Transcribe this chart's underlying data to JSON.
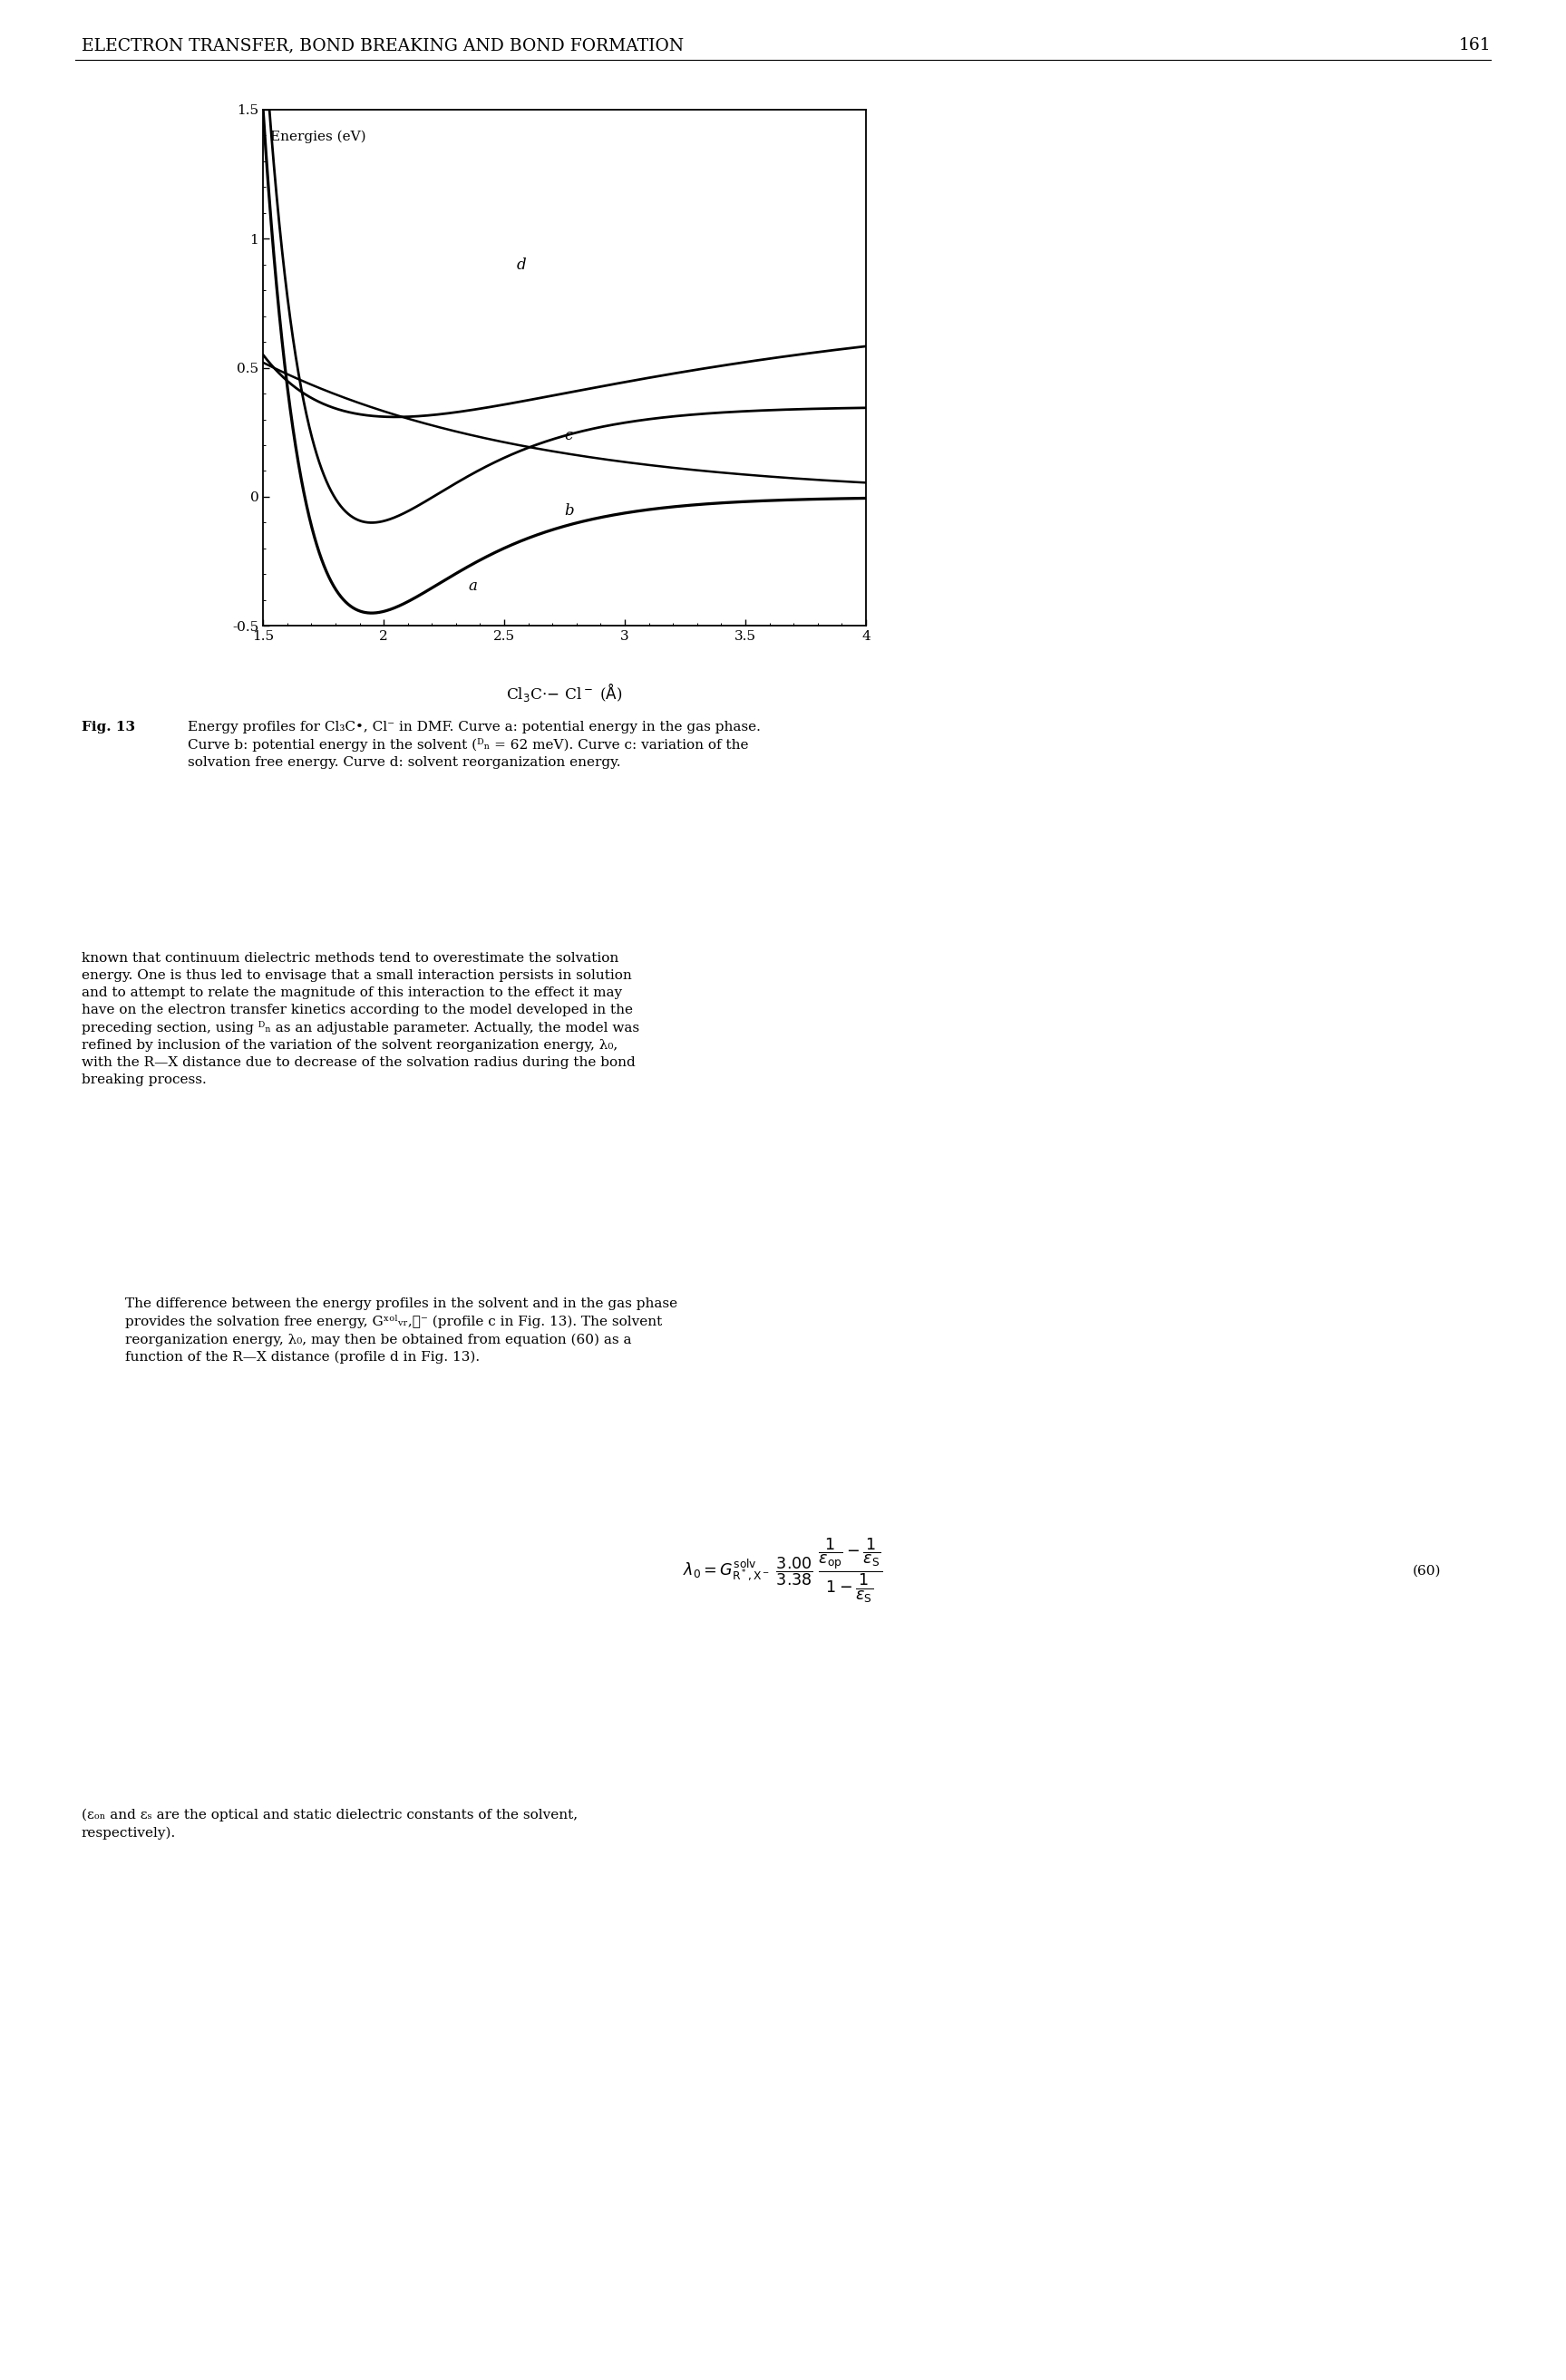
{
  "x_min": 1.5,
  "x_max": 4.0,
  "y_min": -0.5,
  "y_max": 1.5,
  "x_ticks": [
    1.5,
    2.0,
    2.5,
    3.0,
    3.5,
    4.0
  ],
  "y_ticks": [
    -0.5,
    0.0,
    0.5,
    1.0,
    1.5
  ],
  "x_tick_labels": [
    "1.5",
    "2",
    "2.5",
    "3",
    "3.5",
    "4"
  ],
  "y_tick_labels": [
    "-0.5",
    "0",
    "0.5",
    "1",
    "1.5"
  ],
  "ylabel_inside": "Energies (eV)",
  "xlabel": "Cl₃C·– Cl⁻ (Å)",
  "header_text": "ELECTRON TRANSFER, BOND BREAKING AND BOND FORMATION",
  "header_page": "161",
  "morse_De": 0.45,
  "morse_re": 1.95,
  "morse_alpha": 2.5,
  "curve_b_shift": 0.35,
  "curve_c_A": 0.52,
  "curve_c_k": 0.9,
  "curve_d_A": 0.55,
  "curve_d_B": 0.78,
  "curve_d_k": 3.0,
  "curve_d_m": 0.55,
  "curve_d_C": 0.0,
  "label_a": [
    2.35,
    -0.36
  ],
  "label_b": [
    2.75,
    -0.07
  ],
  "label_c": [
    2.75,
    0.22
  ],
  "label_d": [
    2.55,
    0.88
  ],
  "caption_bold": "Fig. 13",
  "caption_normal": "   Energy profiles for Cl₃C•, Cl⁻ in DMF. Curve a: potential energy in the gas phase.\nCurve b: potential energy in the solvent (Dₙ = 62 meV). Curve c: variation of the\nsolvation free energy. Curve d: solvent reorganization energy.",
  "body_text_1": "known that continuum dielectric methods tend to overestimate the solvation\nenergy. One is thus led to envisage that a small interaction persists in solution\nand to attempt to relate the magnitude of this interaction to the effect it may\nhave on the electron transfer kinetics according to the model developed in the\npreceding section, using Dₙ as an adjustable parameter. Actually, the model was\nrefined by inclusion of the variation of the solvent reorganization energy, λ₀,\nwith the R—X distance due to decrease of the solvation radius during the bond\nbreaking process.",
  "body_text_2": "The difference between the energy profiles in the solvent and in the gas phase\nprovides the solvation free energy, Gˣᵒˡᵥ,ᵯ⁻ (profile c in Fig. 13). The solvent\nreorganization energy, λ₀, may then be obtained from equation (60) as a\nfunction of the R—X distance (profile d in Fig. 13).",
  "eq_text": "λ₀ = Gˣᵒˡᵥ,ᵯ⁻  3.00  1/εₒₙ − 1/εₛ\n              3.38  1 − 1/εₛ",
  "footer_text": "(εₒₙ and εₛ are the optical and static dielectric constants of the solvent,\nrespectively).",
  "lw": 1.8,
  "tick_labelsize": 11,
  "inside_label_fontsize": 11,
  "curve_label_fontsize": 12,
  "caption_fontsize": 11,
  "body_fontsize": 11,
  "header_fontsize": 9
}
